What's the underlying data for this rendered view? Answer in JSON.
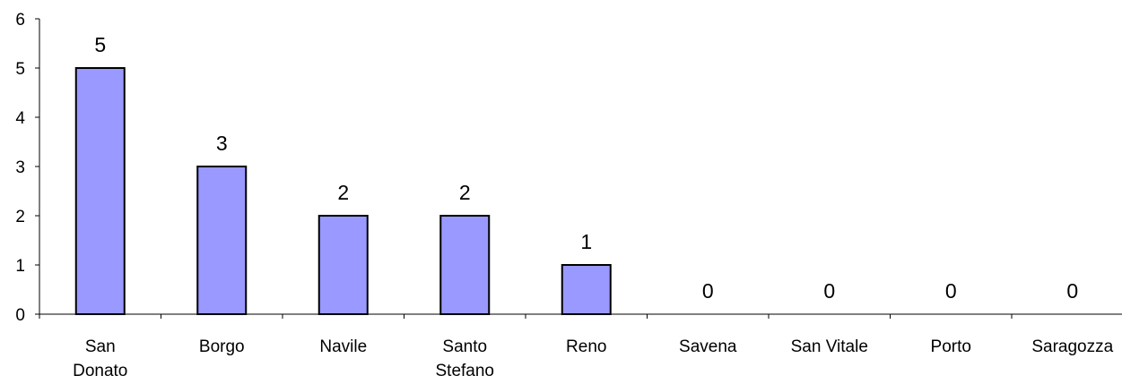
{
  "chart_data": {
    "type": "bar",
    "categories": [
      [
        "San",
        "Donato"
      ],
      [
        "Borgo"
      ],
      [
        "Navile"
      ],
      [
        "Santo",
        "Stefano"
      ],
      [
        "Reno"
      ],
      [
        "Savena"
      ],
      [
        "San Vitale"
      ],
      [
        "Porto"
      ],
      [
        "Saragozza"
      ]
    ],
    "values": [
      5,
      3,
      2,
      2,
      1,
      0,
      0,
      0,
      0
    ],
    "data_labels": [
      "5",
      "3",
      "2",
      "2",
      "1",
      "0",
      "0",
      "0",
      "0"
    ],
    "ylim": [
      0,
      6
    ],
    "yticks": [
      "0",
      "1",
      "2",
      "3",
      "4",
      "5",
      "6"
    ],
    "bar_color": "#9999ff",
    "bar_border_color": "#000000",
    "grid": false,
    "legend": "none"
  }
}
